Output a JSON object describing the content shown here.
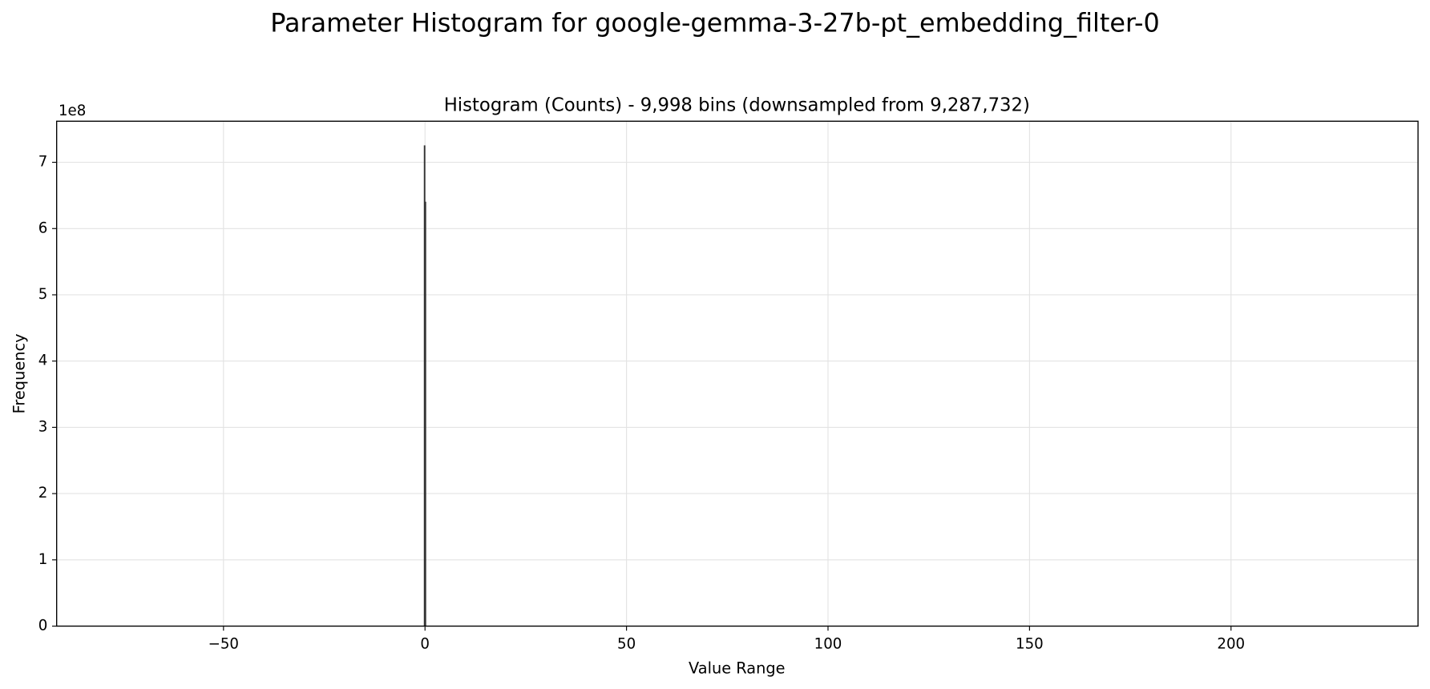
{
  "chart_data": {
    "type": "histogram",
    "suptitle": "Parameter Histogram for google-gemma-3-27b-pt_embedding_filter-0",
    "title": "Histogram (Counts) - 9,998 bins (downsampled from 9,287,732)",
    "xlabel": "Value Range",
    "ylabel": "Frequency",
    "y_offset_label": "1e8",
    "bins": [
      -0.2,
      0,
      0.2
    ],
    "counts": [
      725000000,
      640000000
    ],
    "color": "#333333",
    "xlim": [
      -91.4,
      246.4
    ],
    "xticks": [
      {
        "value": -50,
        "label": "−50"
      },
      0,
      50,
      100,
      150,
      200
    ],
    "ylim": [
      0,
      762000000
    ],
    "yticks": [
      {
        "value": 0,
        "label": "0"
      },
      {
        "value": 100000000,
        "label": "1"
      },
      {
        "value": 200000000,
        "label": "2"
      },
      {
        "value": 300000000,
        "label": "3"
      },
      {
        "value": 400000000,
        "label": "4"
      },
      {
        "value": 500000000,
        "label": "5"
      },
      {
        "value": 600000000,
        "label": "6"
      },
      {
        "value": 700000000,
        "label": "7"
      }
    ],
    "grid": true
  }
}
